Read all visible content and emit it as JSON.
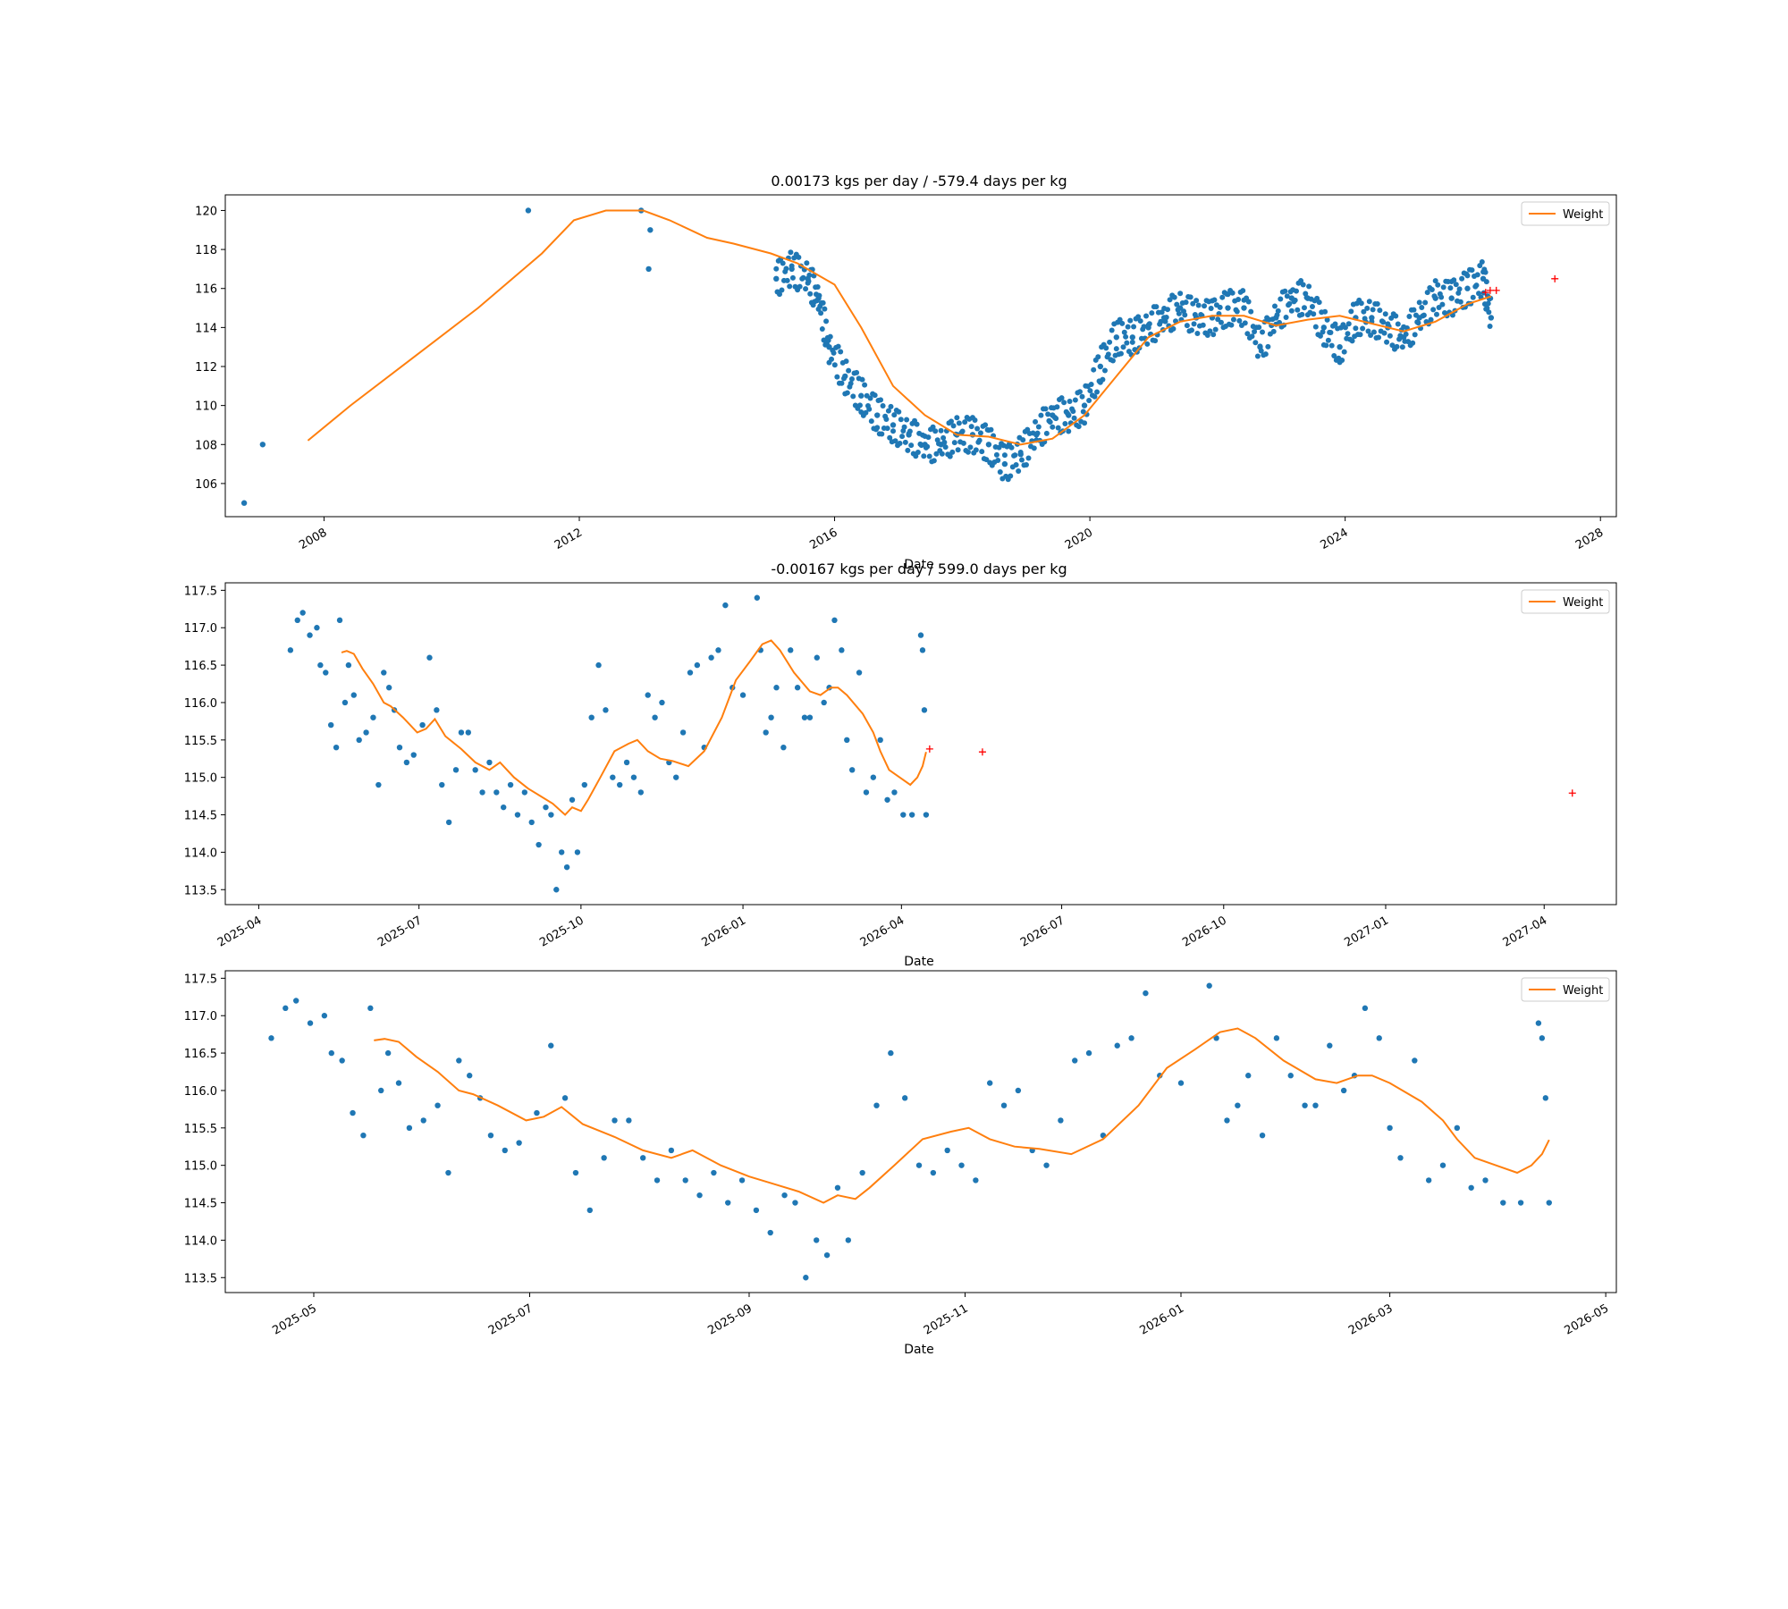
{
  "colors": {
    "scatter": "#1f77b4",
    "line": "#ff7f0e",
    "forecast": "#ff0000",
    "axis": "#000000"
  },
  "chart_data": [
    {
      "type": "scatter",
      "title": "0.00173 kgs per day / -579.4 days per kg",
      "xlabel": "Date",
      "ylabel": "",
      "x_axis_type": "date",
      "xlim": [
        "2006-06-15",
        "2028-04-01"
      ],
      "ylim": [
        104.3,
        120.8
      ],
      "xticks": [
        "2008-01-01",
        "2012-01-01",
        "2016-01-01",
        "2020-01-01",
        "2024-01-01",
        "2028-01-01"
      ],
      "xtick_labels": [
        "2008",
        "2012",
        "2016",
        "2020",
        "2024",
        "2028"
      ],
      "yticks": [
        106,
        108,
        110,
        112,
        114,
        116,
        118,
        120
      ],
      "ytick_labels": [
        "106",
        "108",
        "110",
        "112",
        "114",
        "116",
        "118",
        "120"
      ],
      "grid": false,
      "legend_position": "top-right",
      "series": [
        {
          "name": "",
          "kind": "scatter",
          "color": "#1f77b4",
          "note": "dense daily weight readings (approximate trace)",
          "x": [
            "2006-10-01",
            "2007-01-15",
            "2011-03-15",
            "2012-12-20",
            "2013-02-01",
            "2013-02-10",
            "2015-02-01",
            "2015-05-01",
            "2015-08-01",
            "2015-10-01",
            "2015-12-01",
            "2016-03-01",
            "2016-06-01",
            "2016-09-01",
            "2016-12-01",
            "2017-03-01",
            "2017-06-01",
            "2017-09-01",
            "2017-12-01",
            "2018-03-01",
            "2018-06-01",
            "2018-09-01",
            "2018-12-01",
            "2019-03-01",
            "2019-06-01",
            "2019-09-01",
            "2019-12-01",
            "2020-03-01",
            "2020-06-01",
            "2020-09-01",
            "2020-12-01",
            "2021-03-01",
            "2021-06-01",
            "2021-09-01",
            "2021-12-01",
            "2022-03-01",
            "2022-06-01",
            "2022-09-01",
            "2022-12-01",
            "2023-03-01",
            "2023-06-01",
            "2023-09-01",
            "2023-12-01",
            "2024-03-01",
            "2024-06-01",
            "2024-09-01",
            "2024-12-01",
            "2025-03-01",
            "2025-06-01",
            "2025-09-01",
            "2025-12-01",
            "2026-03-01",
            "2026-04-15"
          ],
          "y": [
            105.0,
            108.0,
            120.0,
            120.0,
            117.0,
            119.0,
            116.5,
            117.0,
            116.5,
            115.5,
            113.0,
            111.5,
            110.5,
            109.5,
            109.0,
            108.5,
            108.0,
            108.0,
            108.5,
            108.5,
            108.0,
            107.0,
            107.5,
            108.5,
            109.5,
            109.5,
            110.0,
            112.0,
            113.5,
            113.5,
            114.0,
            114.5,
            115.0,
            114.5,
            114.5,
            115.0,
            115.0,
            113.0,
            114.5,
            115.5,
            115.5,
            114.0,
            113.0,
            114.5,
            114.5,
            114.0,
            113.5,
            114.5,
            115.5,
            115.5,
            116.0,
            116.5,
            114.5
          ]
        },
        {
          "name": "Weight",
          "kind": "line",
          "color": "#ff7f0e",
          "x": [
            "2007-10-01",
            "2008-06-01",
            "2009-06-01",
            "2010-06-01",
            "2011-06-01",
            "2011-12-01",
            "2012-06-01",
            "2013-01-01",
            "2013-06-01",
            "2014-01-01",
            "2014-06-01",
            "2015-01-01",
            "2015-06-01",
            "2016-01-01",
            "2016-06-01",
            "2016-12-01",
            "2017-06-01",
            "2017-12-01",
            "2018-06-01",
            "2018-12-01",
            "2019-06-01",
            "2019-12-01",
            "2020-06-01",
            "2020-12-01",
            "2021-06-01",
            "2021-12-01",
            "2022-06-01",
            "2022-12-01",
            "2023-06-01",
            "2023-12-01",
            "2024-06-01",
            "2024-12-01",
            "2025-06-01",
            "2025-12-01",
            "2026-04-15"
          ],
          "y": [
            108.2,
            110.0,
            112.5,
            115.0,
            117.8,
            119.5,
            120.0,
            120.0,
            119.5,
            118.6,
            118.3,
            117.8,
            117.3,
            116.2,
            114.0,
            111.0,
            109.5,
            108.5,
            108.4,
            108.0,
            108.3,
            109.5,
            111.5,
            113.5,
            114.3,
            114.6,
            114.6,
            114.1,
            114.4,
            114.6,
            114.2,
            113.8,
            114.3,
            115.2,
            115.6
          ]
        },
        {
          "name": "",
          "kind": "forecast",
          "color": "#ff0000",
          "x": [
            "2026-03-15",
            "2026-04-10",
            "2026-05-15",
            "2027-04-15"
          ],
          "y": [
            115.8,
            115.9,
            115.9,
            116.5
          ]
        }
      ]
    },
    {
      "type": "scatter",
      "title": "-0.00167 kgs per day / 599.0 days per kg",
      "xlabel": "Date",
      "ylabel": "",
      "x_axis_type": "date",
      "xlim": [
        "2025-03-13",
        "2027-05-12"
      ],
      "ylim": [
        113.3,
        117.6
      ],
      "xticks": [
        "2025-04-01",
        "2025-07-01",
        "2025-10-01",
        "2026-01-01",
        "2026-04-01",
        "2026-07-01",
        "2026-10-01",
        "2027-01-01",
        "2027-04-01"
      ],
      "xtick_labels": [
        "2025-04",
        "2025-07",
        "2025-10",
        "2026-01",
        "2026-04",
        "2026-07",
        "2026-10",
        "2027-01",
        "2027-04"
      ],
      "yticks": [
        113.5,
        114.0,
        114.5,
        115.0,
        115.5,
        116.0,
        116.5,
        117.0,
        117.5
      ],
      "ytick_labels": [
        "113.5",
        "114.0",
        "114.5",
        "115.0",
        "115.5",
        "116.0",
        "116.5",
        "117.0",
        "117.5"
      ],
      "grid": false,
      "legend_position": "top-right",
      "series": [
        {
          "name": "",
          "kind": "scatter",
          "color": "#1f77b4",
          "x": [
            "2025-04-19",
            "2025-04-23",
            "2025-04-26",
            "2025-04-30",
            "2025-05-04",
            "2025-05-06",
            "2025-05-09",
            "2025-05-12",
            "2025-05-15",
            "2025-05-17",
            "2025-05-20",
            "2025-05-22",
            "2025-05-25",
            "2025-05-28",
            "2025-06-01",
            "2025-06-05",
            "2025-06-08",
            "2025-06-11",
            "2025-06-14",
            "2025-06-17",
            "2025-06-20",
            "2025-06-24",
            "2025-06-28",
            "2025-07-03",
            "2025-07-07",
            "2025-07-11",
            "2025-07-14",
            "2025-07-18",
            "2025-07-22",
            "2025-07-25",
            "2025-07-29",
            "2025-08-02",
            "2025-08-06",
            "2025-08-10",
            "2025-08-14",
            "2025-08-18",
            "2025-08-22",
            "2025-08-26",
            "2025-08-30",
            "2025-09-03",
            "2025-09-07",
            "2025-09-11",
            "2025-09-14",
            "2025-09-17",
            "2025-09-20",
            "2025-09-23",
            "2025-09-26",
            "2025-09-29",
            "2025-10-03",
            "2025-10-07",
            "2025-10-11",
            "2025-10-15",
            "2025-10-19",
            "2025-10-23",
            "2025-10-27",
            "2025-10-31",
            "2025-11-04",
            "2025-11-08",
            "2025-11-12",
            "2025-11-16",
            "2025-11-20",
            "2025-11-24",
            "2025-11-28",
            "2025-12-02",
            "2025-12-06",
            "2025-12-10",
            "2025-12-14",
            "2025-12-18",
            "2025-12-22",
            "2025-12-26",
            "2026-01-01",
            "2026-01-09",
            "2026-01-11",
            "2026-01-14",
            "2026-01-17",
            "2026-01-20",
            "2026-01-24",
            "2026-01-28",
            "2026-02-01",
            "2026-02-05",
            "2026-02-08",
            "2026-02-12",
            "2026-02-16",
            "2026-02-19",
            "2026-02-22",
            "2026-02-26",
            "2026-03-01",
            "2026-03-04",
            "2026-03-08",
            "2026-03-12",
            "2026-03-16",
            "2026-03-20",
            "2026-03-24",
            "2026-03-28",
            "2026-04-02",
            "2026-04-07",
            "2026-04-12",
            "2026-04-13",
            "2026-04-14",
            "2026-04-15"
          ],
          "y": [
            116.7,
            117.1,
            117.2,
            116.9,
            117.0,
            116.5,
            116.4,
            115.7,
            115.4,
            117.1,
            116.0,
            116.5,
            116.1,
            115.5,
            115.6,
            115.8,
            114.9,
            116.4,
            116.2,
            115.9,
            115.4,
            115.2,
            115.3,
            115.7,
            116.6,
            115.9,
            114.9,
            114.4,
            115.1,
            115.6,
            115.6,
            115.1,
            114.8,
            115.2,
            114.8,
            114.6,
            114.9,
            114.5,
            114.8,
            114.4,
            114.1,
            114.6,
            114.5,
            113.5,
            114.0,
            113.8,
            114.7,
            114.0,
            114.9,
            115.8,
            116.5,
            115.9,
            115.0,
            114.9,
            115.2,
            115.0,
            114.8,
            116.1,
            115.8,
            116.0,
            115.2,
            115.0,
            115.6,
            116.4,
            116.5,
            115.4,
            116.6,
            116.7,
            117.3,
            116.2,
            116.1,
            117.4,
            116.7,
            115.6,
            115.8,
            116.2,
            115.4,
            116.7,
            116.2,
            115.8,
            115.8,
            116.6,
            116.0,
            116.2,
            117.1,
            116.7,
            115.5,
            115.1,
            116.4,
            114.8,
            115.0,
            115.5,
            114.7,
            114.8,
            114.5,
            114.5,
            116.9,
            116.7,
            115.9,
            114.5
          ]
        },
        {
          "name": "Weight",
          "kind": "line",
          "color": "#ff7f0e",
          "x": [
            "2025-05-18",
            "2025-05-21",
            "2025-05-25",
            "2025-05-30",
            "2025-06-05",
            "2025-06-11",
            "2025-06-15",
            "2025-06-22",
            "2025-06-30",
            "2025-07-05",
            "2025-07-10",
            "2025-07-16",
            "2025-07-25",
            "2025-08-02",
            "2025-08-10",
            "2025-08-16",
            "2025-08-24",
            "2025-09-01",
            "2025-09-08",
            "2025-09-15",
            "2025-09-22",
            "2025-09-26",
            "2025-10-01",
            "2025-10-05",
            "2025-10-12",
            "2025-10-20",
            "2025-10-28",
            "2025-11-02",
            "2025-11-08",
            "2025-11-15",
            "2025-11-22",
            "2025-12-01",
            "2025-12-10",
            "2025-12-20",
            "2025-12-28",
            "2026-01-05",
            "2026-01-12",
            "2026-01-17",
            "2026-01-22",
            "2026-01-30",
            "2026-02-08",
            "2026-02-14",
            "2026-02-20",
            "2026-02-24",
            "2026-03-01",
            "2026-03-10",
            "2026-03-16",
            "2026-03-20",
            "2026-03-25",
            "2026-03-31",
            "2026-04-06",
            "2026-04-10",
            "2026-04-13",
            "2026-04-15"
          ],
          "y": [
            116.67,
            116.69,
            116.65,
            116.45,
            116.25,
            116.0,
            115.95,
            115.8,
            115.6,
            115.65,
            115.78,
            115.55,
            115.38,
            115.2,
            115.1,
            115.2,
            115.0,
            114.85,
            114.75,
            114.65,
            114.5,
            114.6,
            114.55,
            114.7,
            115.0,
            115.35,
            115.45,
            115.5,
            115.35,
            115.25,
            115.22,
            115.15,
            115.35,
            115.8,
            116.3,
            116.55,
            116.78,
            116.83,
            116.7,
            116.4,
            116.15,
            116.1,
            116.2,
            116.2,
            116.1,
            115.85,
            115.6,
            115.35,
            115.1,
            115.0,
            114.9,
            115.0,
            115.15,
            115.34
          ]
        },
        {
          "name": "",
          "kind": "forecast",
          "color": "#ff0000",
          "x": [
            "2026-04-17",
            "2026-05-17",
            "2027-04-17"
          ],
          "y": [
            115.38,
            115.34,
            114.79
          ]
        }
      ]
    },
    {
      "type": "scatter",
      "title": "",
      "xlabel": "Date",
      "ylabel": "",
      "x_axis_type": "date",
      "xlim": [
        "2025-04-06",
        "2026-05-04"
      ],
      "ylim": [
        113.3,
        117.6
      ],
      "xticks": [
        "2025-05-01",
        "2025-07-01",
        "2025-09-01",
        "2025-11-01",
        "2026-01-01",
        "2026-03-01",
        "2026-05-01"
      ],
      "xtick_labels": [
        "2025-05",
        "2025-07",
        "2025-09",
        "2025-11",
        "2026-01",
        "2026-03",
        "2026-05"
      ],
      "yticks": [
        113.5,
        114.0,
        114.5,
        115.0,
        115.5,
        116.0,
        116.5,
        117.0,
        117.5
      ],
      "ytick_labels": [
        "113.5",
        "114.0",
        "114.5",
        "115.0",
        "115.5",
        "116.0",
        "116.5",
        "117.0",
        "117.5"
      ],
      "grid": false,
      "legend_position": "top-right",
      "series": [
        {
          "name": "",
          "kind": "scatter",
          "color": "#1f77b4",
          "same_as_panel": 1
        },
        {
          "name": "Weight",
          "kind": "line",
          "color": "#ff7f0e",
          "same_as_panel": 1
        }
      ]
    }
  ]
}
